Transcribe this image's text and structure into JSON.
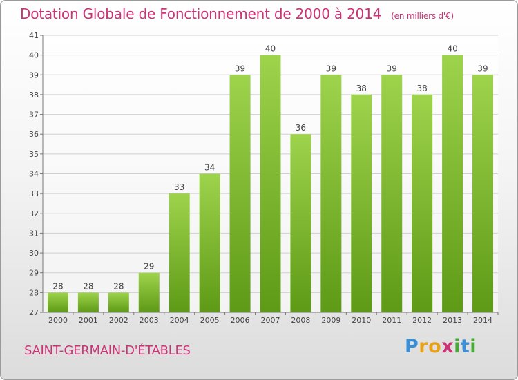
{
  "title": "Dotation Globale de Fonctionnement de 2000 à 2014",
  "unit": "(en milliers d'€)",
  "commune": "SAINT-GERMAIN-D'ÉTABLES",
  "logo": "Proxiti",
  "colors": {
    "accent": "#cc3377",
    "bar": "#7dbb2e"
  },
  "chart_data": {
    "type": "bar",
    "categories": [
      "2000",
      "2001",
      "2002",
      "2003",
      "2004",
      "2005",
      "2006",
      "2007",
      "2008",
      "2009",
      "2010",
      "2011",
      "2012",
      "2013",
      "2014"
    ],
    "values": [
      28,
      28,
      28,
      29,
      33,
      34,
      39,
      40,
      36,
      39,
      38,
      39,
      38,
      40,
      39
    ],
    "ylim": [
      27,
      41
    ],
    "yticks": [
      27,
      28,
      29,
      30,
      31,
      32,
      33,
      34,
      35,
      36,
      37,
      38,
      39,
      40,
      41
    ],
    "grid": true
  }
}
